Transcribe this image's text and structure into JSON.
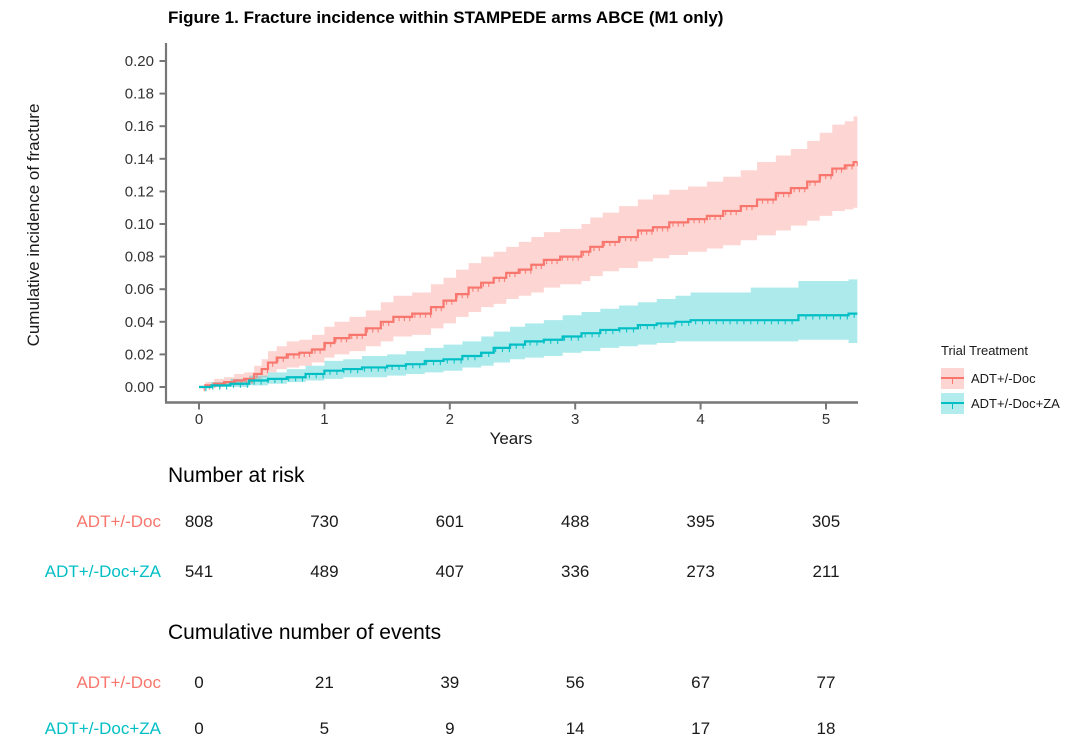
{
  "figure_title": "Figure 1. Fracture incidence within STAMPEDE arms ABCE (M1 only)",
  "chart_data": {
    "type": "line",
    "subtype": "cumulative-incidence-step-curves-with-confidence-bands",
    "title": "Figure 1. Fracture incidence within STAMPEDE arms ABCE (M1 only)",
    "xlabel": "Years",
    "ylabel": "Cumulative incidence of fracture",
    "xlim": [
      0,
      5.25
    ],
    "ylim": [
      0,
      0.2
    ],
    "x_ticks": [
      0,
      1,
      2,
      3,
      4,
      5
    ],
    "y_ticks": [
      0.0,
      0.02,
      0.04,
      0.06,
      0.08,
      0.1,
      0.12,
      0.14,
      0.16,
      0.18,
      0.2
    ],
    "grid": "off",
    "legend_position": "right",
    "end_time": 5.25,
    "axis_color": "#777777",
    "tick_label_color": "#333333",
    "series": [
      {
        "name": "ADT+/-Doc",
        "color": "#F8766D",
        "band_opacity": 0.3,
        "censor_tick_spacing_years": 0.042,
        "points_t_est_lo_hi": [
          [
            0.0,
            0.0,
            0.0,
            0.0
          ],
          [
            0.05,
            0.001,
            0.0,
            0.003
          ],
          [
            0.12,
            0.002,
            0.0,
            0.005
          ],
          [
            0.2,
            0.003,
            0.001,
            0.006
          ],
          [
            0.28,
            0.004,
            0.001,
            0.008
          ],
          [
            0.36,
            0.005,
            0.002,
            0.009
          ],
          [
            0.44,
            0.008,
            0.004,
            0.013
          ],
          [
            0.5,
            0.011,
            0.006,
            0.017
          ],
          [
            0.55,
            0.015,
            0.009,
            0.022
          ],
          [
            0.62,
            0.018,
            0.011,
            0.025
          ],
          [
            0.7,
            0.02,
            0.012,
            0.028
          ],
          [
            0.8,
            0.021,
            0.013,
            0.029
          ],
          [
            0.9,
            0.023,
            0.015,
            0.032
          ],
          [
            1.0,
            0.027,
            0.018,
            0.037
          ],
          [
            1.08,
            0.03,
            0.02,
            0.04
          ],
          [
            1.2,
            0.032,
            0.022,
            0.043
          ],
          [
            1.33,
            0.036,
            0.025,
            0.047
          ],
          [
            1.45,
            0.04,
            0.028,
            0.052
          ],
          [
            1.55,
            0.043,
            0.031,
            0.056
          ],
          [
            1.7,
            0.045,
            0.032,
            0.058
          ],
          [
            1.85,
            0.049,
            0.036,
            0.063
          ],
          [
            1.95,
            0.053,
            0.039,
            0.067
          ],
          [
            2.05,
            0.057,
            0.043,
            0.072
          ],
          [
            2.15,
            0.061,
            0.046,
            0.076
          ],
          [
            2.25,
            0.064,
            0.049,
            0.08
          ],
          [
            2.35,
            0.067,
            0.051,
            0.083
          ],
          [
            2.45,
            0.07,
            0.054,
            0.086
          ],
          [
            2.55,
            0.072,
            0.056,
            0.089
          ],
          [
            2.65,
            0.075,
            0.058,
            0.092
          ],
          [
            2.75,
            0.078,
            0.061,
            0.095
          ],
          [
            2.88,
            0.08,
            0.063,
            0.097
          ],
          [
            3.05,
            0.083,
            0.065,
            0.1
          ],
          [
            3.12,
            0.086,
            0.068,
            0.104
          ],
          [
            3.22,
            0.089,
            0.071,
            0.107
          ],
          [
            3.35,
            0.092,
            0.073,
            0.111
          ],
          [
            3.5,
            0.096,
            0.077,
            0.115
          ],
          [
            3.62,
            0.098,
            0.079,
            0.118
          ],
          [
            3.75,
            0.101,
            0.081,
            0.121
          ],
          [
            3.9,
            0.103,
            0.083,
            0.123
          ],
          [
            4.05,
            0.105,
            0.085,
            0.126
          ],
          [
            4.18,
            0.108,
            0.087,
            0.129
          ],
          [
            4.32,
            0.111,
            0.09,
            0.133
          ],
          [
            4.45,
            0.115,
            0.093,
            0.138
          ],
          [
            4.6,
            0.119,
            0.096,
            0.142
          ],
          [
            4.72,
            0.122,
            0.099,
            0.146
          ],
          [
            4.85,
            0.126,
            0.102,
            0.151
          ],
          [
            4.95,
            0.13,
            0.105,
            0.156
          ],
          [
            5.05,
            0.134,
            0.108,
            0.161
          ],
          [
            5.15,
            0.136,
            0.109,
            0.163
          ],
          [
            5.22,
            0.138,
            0.11,
            0.166
          ]
        ]
      },
      {
        "name": "ADT+/-Doc+ZA",
        "color": "#00BFC4",
        "band_opacity": 0.32,
        "censor_tick_spacing_years": 0.055,
        "points_t_est_lo_hi": [
          [
            0.0,
            0.0,
            0.0,
            0.0
          ],
          [
            0.1,
            0.001,
            0.0,
            0.003
          ],
          [
            0.25,
            0.002,
            0.0,
            0.005
          ],
          [
            0.4,
            0.004,
            0.001,
            0.007
          ],
          [
            0.55,
            0.005,
            0.002,
            0.009
          ],
          [
            0.7,
            0.006,
            0.003,
            0.011
          ],
          [
            0.85,
            0.008,
            0.004,
            0.013
          ],
          [
            1.0,
            0.01,
            0.005,
            0.016
          ],
          [
            1.15,
            0.011,
            0.006,
            0.017
          ],
          [
            1.3,
            0.012,
            0.006,
            0.019
          ],
          [
            1.5,
            0.013,
            0.007,
            0.02
          ],
          [
            1.65,
            0.014,
            0.008,
            0.022
          ],
          [
            1.8,
            0.016,
            0.009,
            0.024
          ],
          [
            1.95,
            0.017,
            0.01,
            0.026
          ],
          [
            2.1,
            0.019,
            0.012,
            0.028
          ],
          [
            2.25,
            0.021,
            0.013,
            0.031
          ],
          [
            2.35,
            0.024,
            0.015,
            0.034
          ],
          [
            2.48,
            0.026,
            0.017,
            0.037
          ],
          [
            2.6,
            0.028,
            0.018,
            0.039
          ],
          [
            2.75,
            0.029,
            0.019,
            0.041
          ],
          [
            2.9,
            0.031,
            0.021,
            0.044
          ],
          [
            3.05,
            0.033,
            0.022,
            0.046
          ],
          [
            3.2,
            0.035,
            0.024,
            0.048
          ],
          [
            3.35,
            0.036,
            0.025,
            0.05
          ],
          [
            3.5,
            0.038,
            0.026,
            0.052
          ],
          [
            3.65,
            0.039,
            0.027,
            0.054
          ],
          [
            3.8,
            0.04,
            0.028,
            0.056
          ],
          [
            3.92,
            0.041,
            0.028,
            0.058
          ],
          [
            4.4,
            0.041,
            0.028,
            0.061
          ],
          [
            4.78,
            0.044,
            0.029,
            0.065
          ],
          [
            5.18,
            0.045,
            0.027,
            0.066
          ]
        ]
      }
    ]
  },
  "legend": {
    "title": "Trial Treatment",
    "entries": [
      {
        "label": "ADT+/-Doc",
        "color": "#F8766D"
      },
      {
        "label": "ADT+/-Doc+ZA",
        "color": "#00BFC4"
      }
    ]
  },
  "risk_table": {
    "heading": "Number at risk",
    "time_points": [
      0,
      1,
      2,
      3,
      4,
      5
    ],
    "rows": [
      {
        "label": "ADT+/-Doc",
        "color": "#F8766D",
        "values": [
          "808",
          "730",
          "601",
          "488",
          "395",
          "305"
        ]
      },
      {
        "label": "ADT+/-Doc+ZA",
        "color": "#00BFC4",
        "values": [
          "541",
          "489",
          "407",
          "336",
          "273",
          "211"
        ]
      }
    ]
  },
  "events_table": {
    "heading": "Cumulative number of events",
    "time_points": [
      0,
      1,
      2,
      3,
      4,
      5
    ],
    "rows": [
      {
        "label": "ADT+/-Doc",
        "color": "#F8766D",
        "values": [
          "0",
          "21",
          "39",
          "56",
          "67",
          "77"
        ]
      },
      {
        "label": "ADT+/-Doc+ZA",
        "color": "#00BFC4",
        "values": [
          "0",
          "5",
          "9",
          "14",
          "17",
          "18"
        ]
      }
    ]
  }
}
